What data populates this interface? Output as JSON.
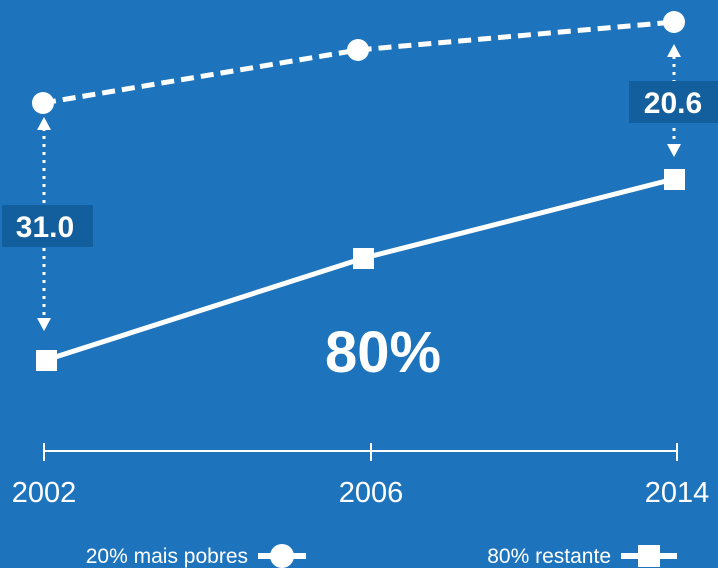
{
  "chart_data": {
    "type": "line",
    "x": [
      "2002",
      "2006",
      "2014"
    ],
    "series": [
      {
        "name": "20% mais pobres",
        "style": "dashed",
        "marker": "circle"
      },
      {
        "name": "80% restante",
        "style": "solid",
        "marker": "square"
      }
    ],
    "gap_annotations": [
      {
        "x": "2002",
        "value": "31.0"
      },
      {
        "x": "2014",
        "value": "20.6"
      }
    ],
    "center_label": "80%",
    "grid": false,
    "legend_position": "bottom"
  },
  "colors": {
    "background": "#1e74bc",
    "line": "#ffffff",
    "label_box": "#135e9c"
  }
}
